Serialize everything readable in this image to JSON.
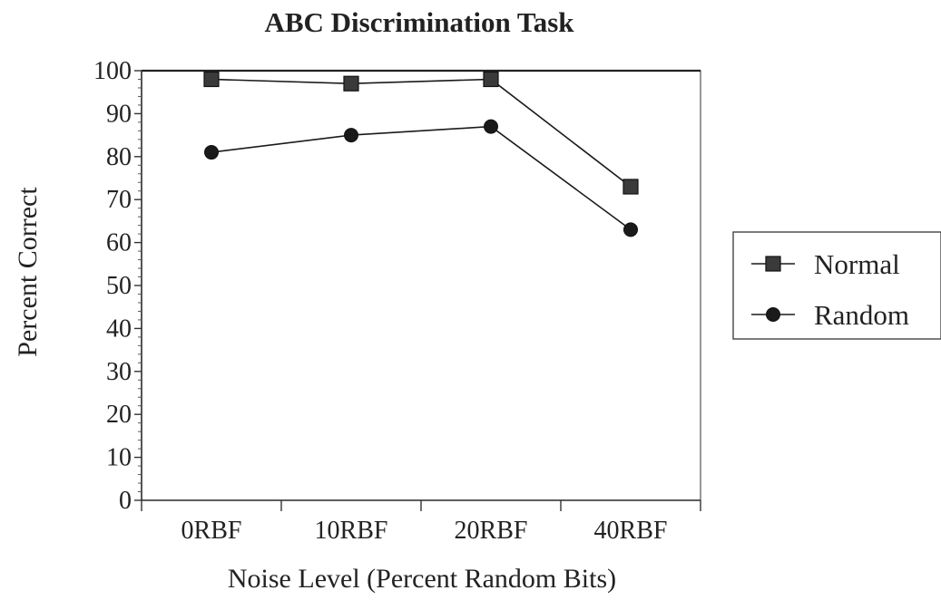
{
  "chart_data": {
    "type": "line",
    "title": "ABC Discrimination Task",
    "xlabel": "Noise Level (Percent Random Bits)",
    "ylabel": "Percent Correct",
    "categories": [
      "0RBF",
      "10RBF",
      "20RBF",
      "40RBF"
    ],
    "ylim": [
      0,
      100
    ],
    "yticks": [
      "0",
      "10",
      "20",
      "30",
      "40",
      "50",
      "60",
      "70",
      "80",
      "90",
      "100"
    ],
    "grid": false,
    "legend_position": "right",
    "series": [
      {
        "name": "Normal",
        "marker": "square",
        "values": [
          98,
          97,
          98,
          73
        ]
      },
      {
        "name": "Random",
        "marker": "circle",
        "values": [
          81,
          85,
          87,
          63
        ]
      }
    ]
  }
}
